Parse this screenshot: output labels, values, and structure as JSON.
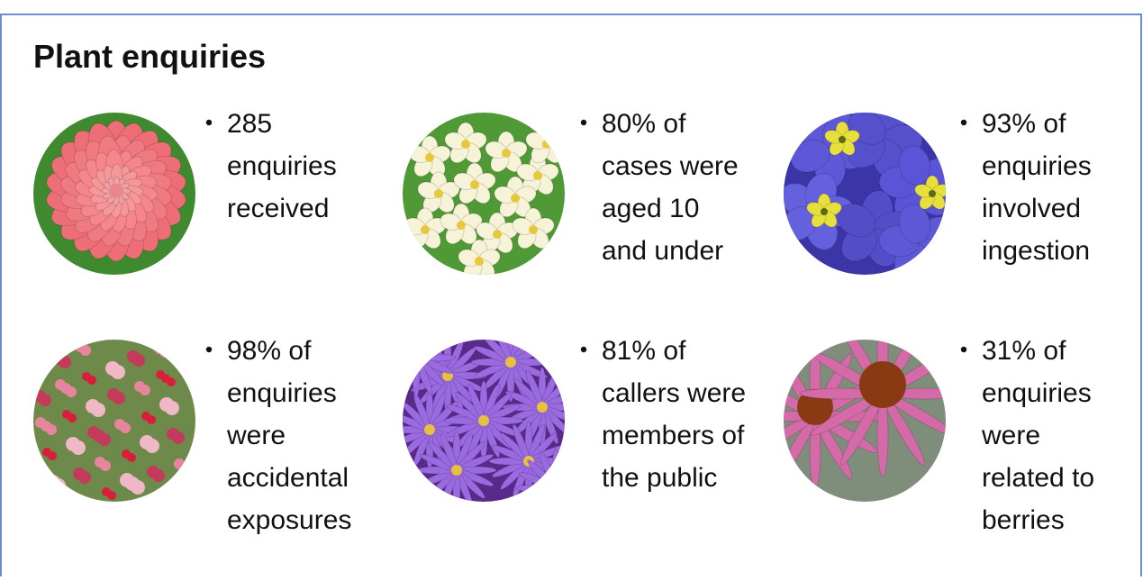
{
  "title": "Plant enquiries",
  "items": [
    {
      "lines": [
        "285",
        "enquiries",
        "received"
      ]
    },
    {
      "lines": [
        "80% of",
        "cases were",
        "aged 10",
        "and under"
      ]
    },
    {
      "lines": [
        "93% of",
        "enquiries",
        "involved",
        "ingestion"
      ]
    },
    {
      "lines": [
        "98% of",
        "enquiries",
        "were",
        "accidental",
        "exposures"
      ]
    },
    {
      "lines": [
        "81% of",
        "callers were",
        "members of",
        "the public"
      ]
    },
    {
      "lines": [
        "31% of",
        "enquiries",
        "were",
        "related to",
        "berries"
      ]
    }
  ]
}
